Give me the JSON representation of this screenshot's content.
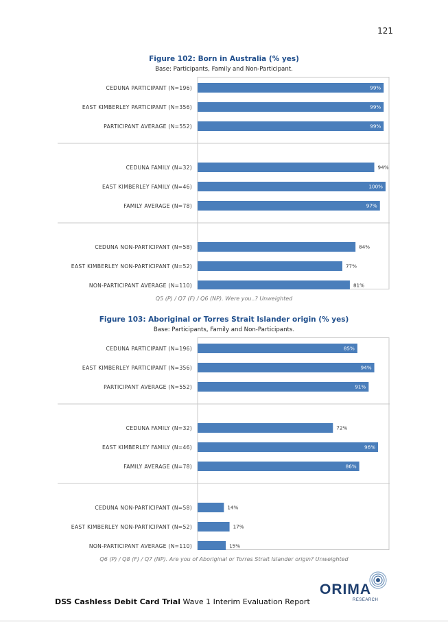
{
  "page_number": "121",
  "figures": [
    {
      "title": "Figure 102: Born in Australia (% yes)",
      "base": "Base: Participants, Family and Non-Participant.",
      "note": "Q5 (P) / Q7 (F) / Q6 (NP). Were you..? Unweighted"
    },
    {
      "title": "Figure 103: Aboriginal or Torres Strait Islander origin (% yes)",
      "base": "Base: Participants, Family and Non-Participants.",
      "note": "Q6 (P) / Q8 (F) / Q7 (NP). Are you of Aboriginal or Torres Strait Islander origin? Unweighted"
    }
  ],
  "chart_data": [
    {
      "type": "bar",
      "orientation": "horizontal",
      "categories": [
        "CEDUNA PARTICIPANT (N=196)",
        "EAST KIMBERLEY PARTICIPANT (N=356)",
        "PARTICIPANT AVERAGE (N=552)",
        "CEDUNA FAMILY (N=32)",
        "EAST KIMBERLEY FAMILY (N=46)",
        "FAMILY AVERAGE (N=78)",
        "CEDUNA NON-PARTICIPANT (N=58)",
        "EAST KIMBERLEY NON-PARTICIPANT (N=52)",
        "NON-PARTICIPANT AVERAGE (N=110)"
      ],
      "values": [
        99,
        99,
        99,
        94,
        100,
        97,
        84,
        77,
        81
      ],
      "value_labels": [
        "99%",
        "99%",
        "99%",
        "94%",
        "100%",
        "97%",
        "84%",
        "77%",
        "81%"
      ],
      "groups": [
        3,
        3,
        3
      ],
      "xlim": [
        0,
        100
      ],
      "bar_color": "#4a7ebb"
    },
    {
      "type": "bar",
      "orientation": "horizontal",
      "categories": [
        "CEDUNA PARTICIPANT (N=196)",
        "EAST KIMBERLEY PARTICIPANT (N=356)",
        "PARTICIPANT AVERAGE (N=552)",
        "CEDUNA FAMILY (N=32)",
        "EAST KIMBERLEY FAMILY (N=46)",
        "FAMILY AVERAGE (N=78)",
        "CEDUNA NON-PARTICIPANT (N=58)",
        "EAST KIMBERLEY NON-PARTICIPANT (N=52)",
        "NON-PARTICIPANT AVERAGE (N=110)"
      ],
      "values": [
        85,
        94,
        91,
        72,
        96,
        86,
        14,
        17,
        15
      ],
      "value_labels": [
        "85%",
        "94%",
        "91%",
        "72%",
        "96%",
        "86%",
        "14%",
        "17%",
        "15%"
      ],
      "groups": [
        3,
        3,
        3
      ],
      "xlim": [
        0,
        100
      ],
      "bar_color": "#4a7ebb"
    }
  ],
  "footer": {
    "bold": "DSS Cashless Debit Card Trial",
    "rest": " Wave 1 Interim Evaluation Report"
  },
  "logo": {
    "name": "ORIMA",
    "sub": "RESEARCH",
    "color": "#1f3f6e"
  }
}
